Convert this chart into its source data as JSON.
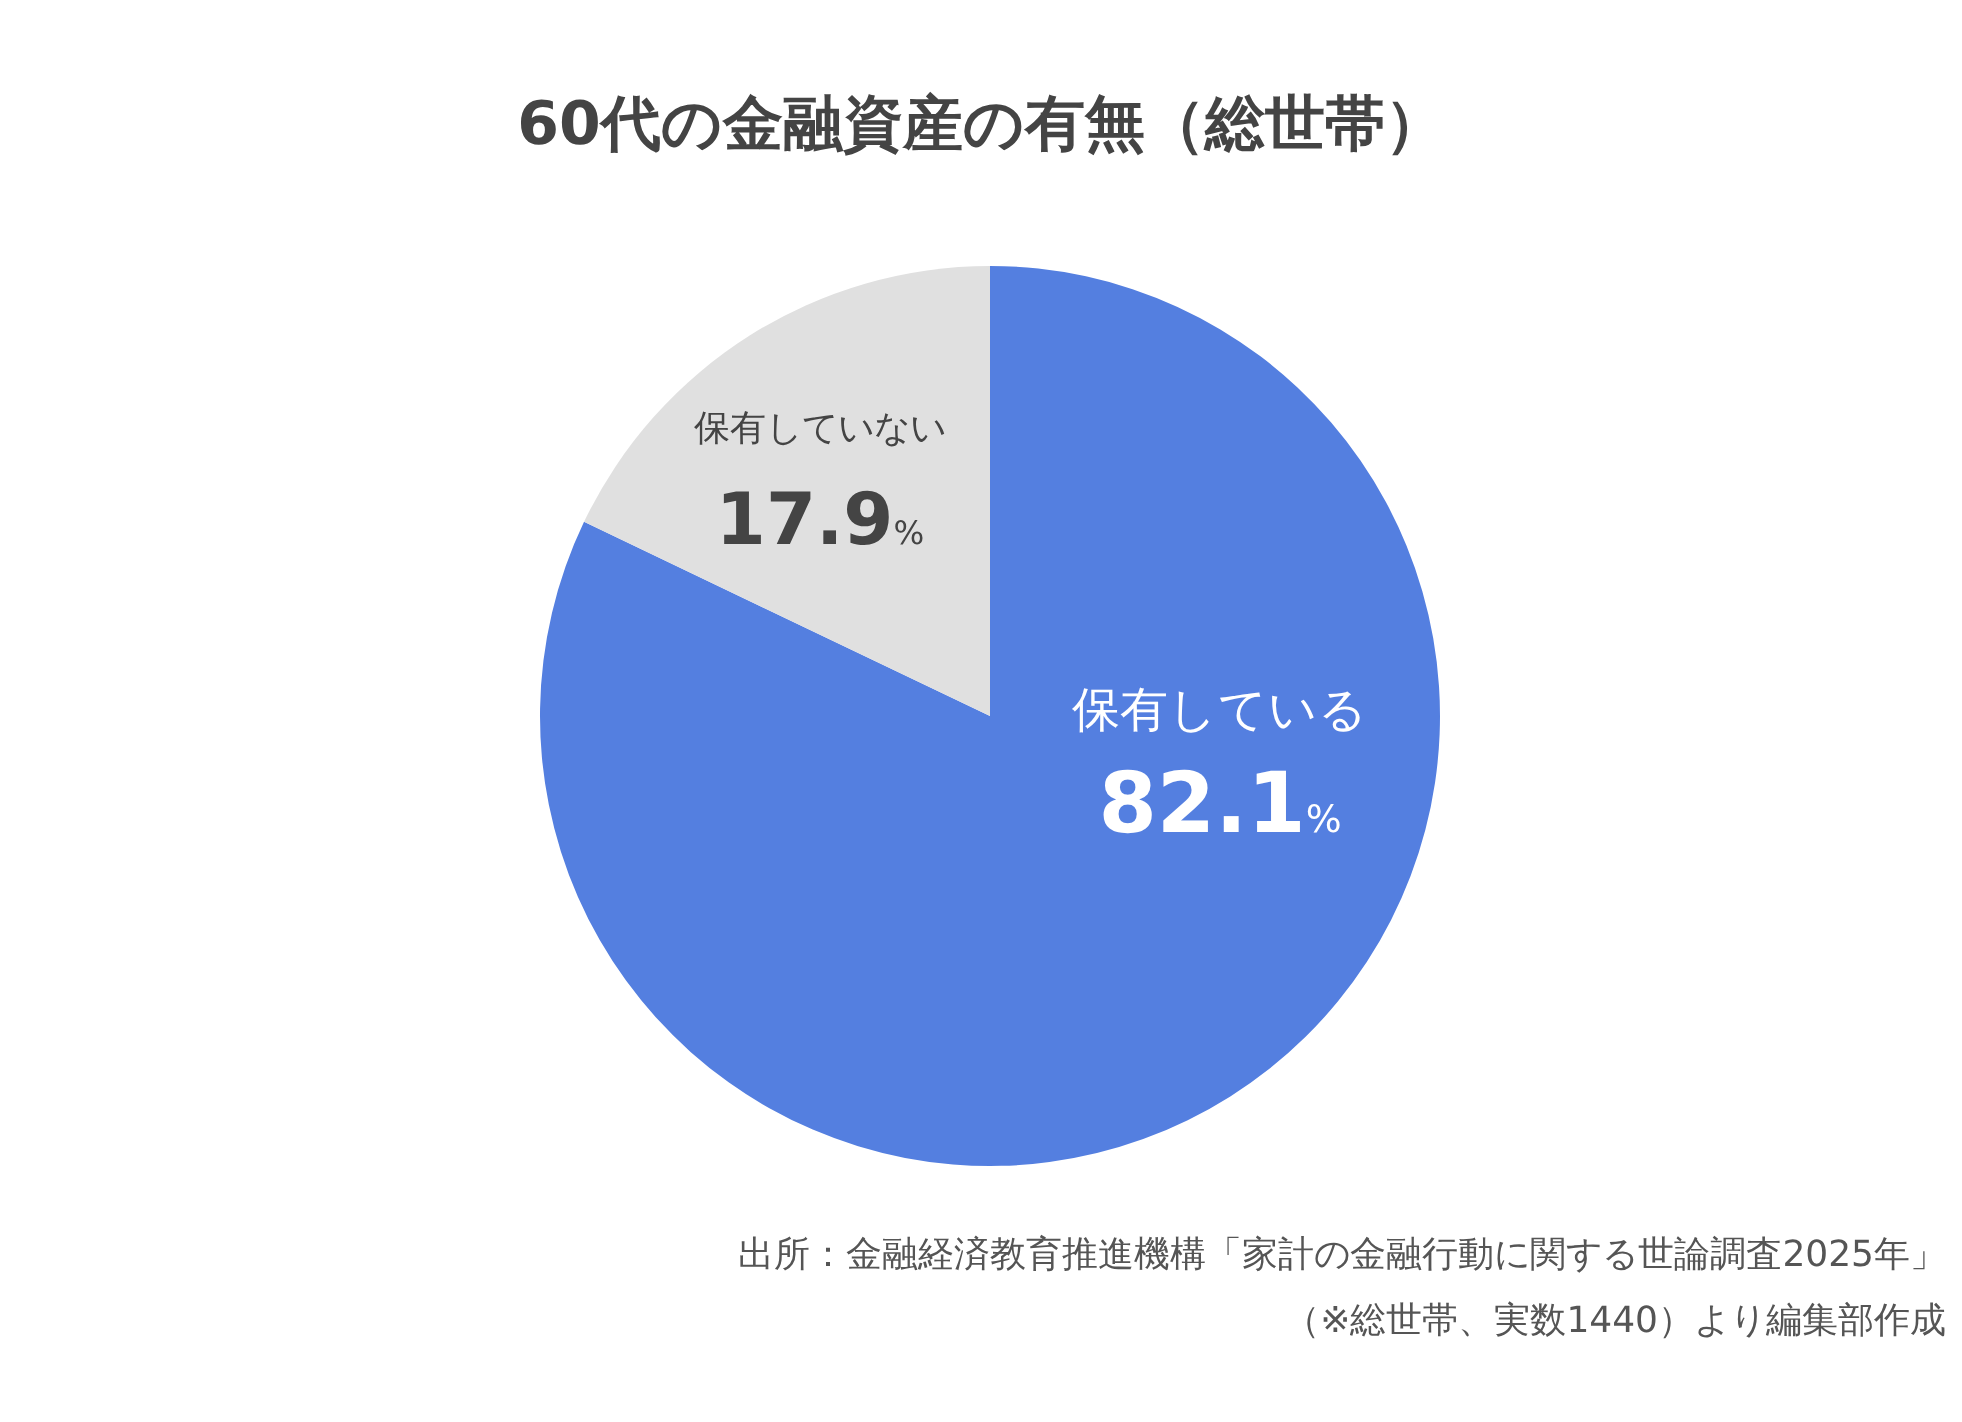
{
  "chart_data": {
    "type": "pie",
    "title": "60代の金融資産の有無（総世帯）",
    "categories": [
      "保有している",
      "保有していない"
    ],
    "values": [
      82.1,
      17.9
    ],
    "colors": [
      "#547fe0",
      "#e0e0e0"
    ],
    "value_labels": [
      "82.1%",
      "17.9%"
    ],
    "legend": false,
    "annotations": [
      "出所：金融経済教育推進機構「家計の金融行動に関する世論調査2025年」",
      "（※総世帯、実数1440）より編集部作成"
    ]
  }
}
